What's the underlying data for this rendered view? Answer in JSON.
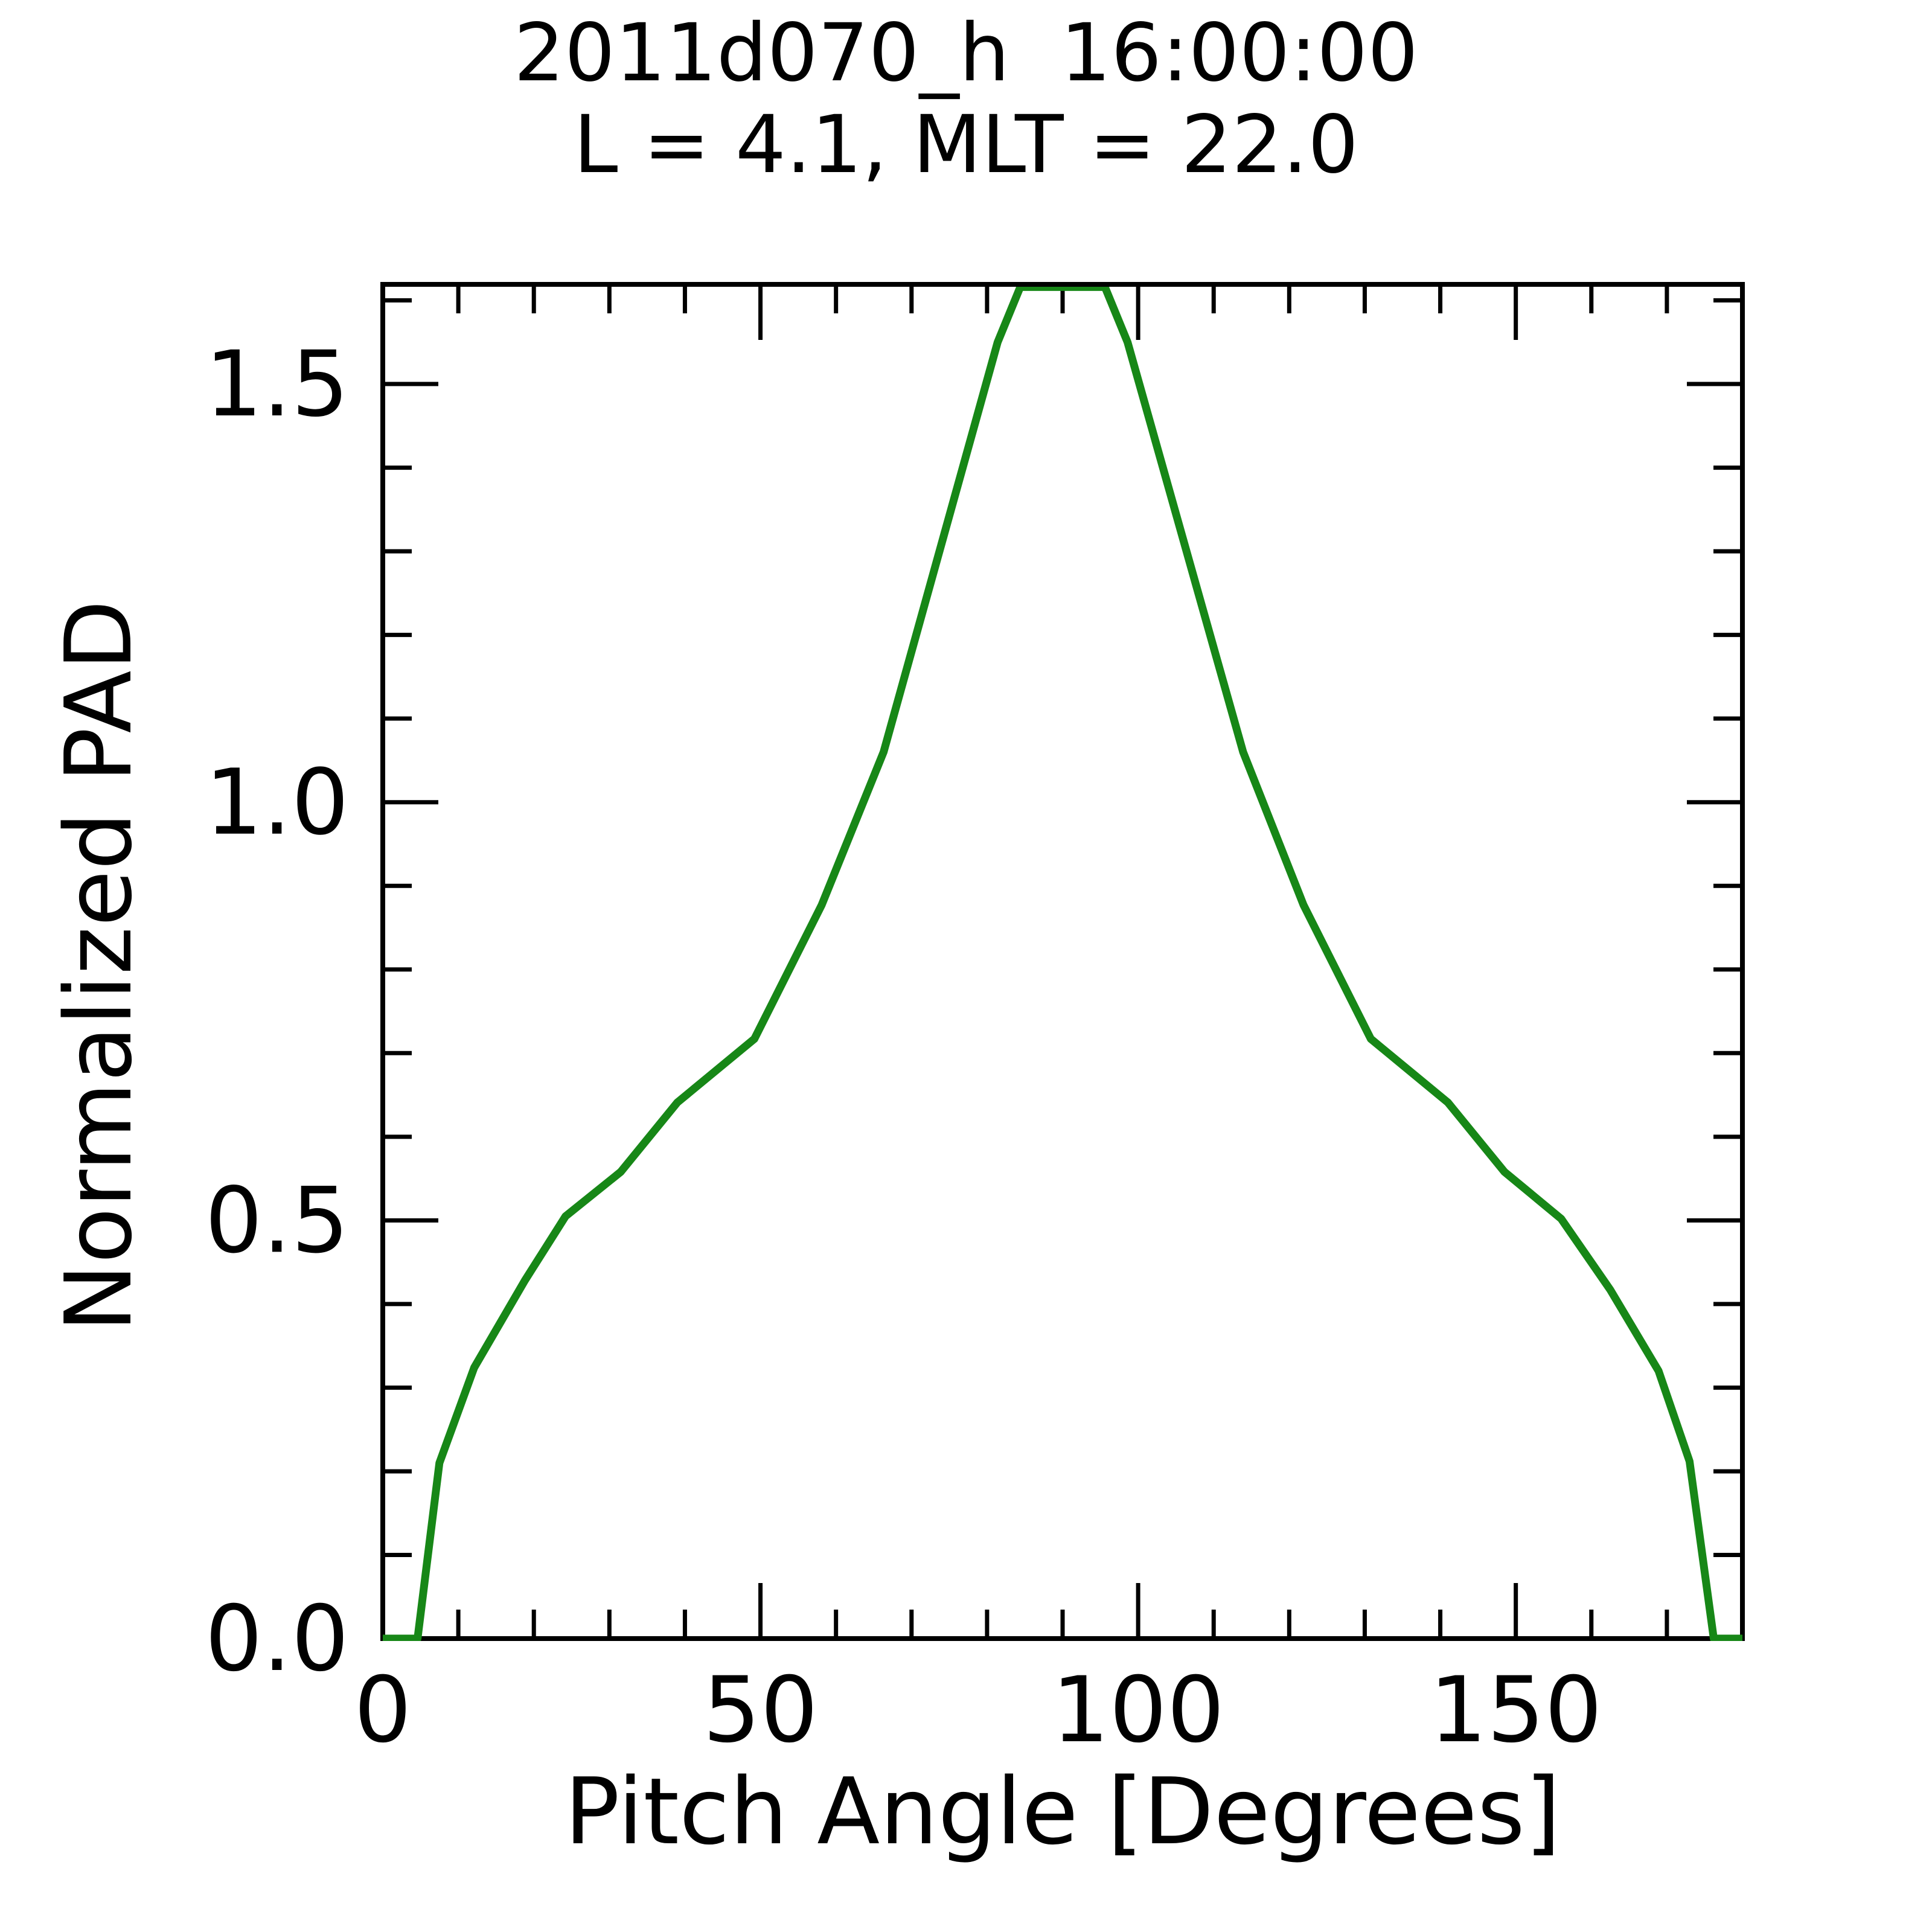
{
  "figure": {
    "title_line1": "2011d070_h  16:00:00",
    "title_line2": "L = 4.1, MLT = 22.0",
    "background_color": "#ffffff",
    "text_color": "#000000"
  },
  "chart_data": {
    "type": "line",
    "title": "2011d070_h  16:00:00",
    "subtitle": "L = 4.1, MLT = 22.0",
    "xlabel": "Pitch Angle [Degrees]",
    "ylabel": "Normalized PAD",
    "xlim": [
      0,
      180
    ],
    "ylim": [
      0,
      1.616
    ],
    "grid": false,
    "legend_position": "none",
    "x_major_ticks": [
      0,
      50,
      100,
      150
    ],
    "x_tick_labels": [
      "0",
      "50",
      "100",
      "150"
    ],
    "x_minor_tick_step": 10,
    "y_major_ticks": [
      0.0,
      0.5,
      1.0,
      1.5
    ],
    "y_tick_labels": [
      "0.0",
      "0.5",
      "1.0",
      "1.5"
    ],
    "y_minor_tick_step": 0.1,
    "line_color": "#178717",
    "axis_color": "#000000",
    "series": [
      {
        "name": "normalized-pad-curve",
        "x": [
          0,
          4.6,
          7.5,
          12.1,
          18.8,
          24.2,
          31.5,
          39.0,
          49.2,
          58.1,
          66.3,
          81.4,
          84.4,
          95.6,
          98.6,
          113.9,
          121.9,
          130.8,
          141.0,
          148.5,
          156.0,
          162.5,
          168.9,
          173.0,
          176.2,
          180
        ],
        "y": [
          0,
          0,
          0.21,
          0.324,
          0.428,
          0.505,
          0.558,
          0.641,
          0.717,
          0.877,
          1.06,
          1.55,
          1.62,
          1.62,
          1.55,
          1.06,
          0.877,
          0.717,
          0.641,
          0.558,
          0.502,
          0.417,
          0.32,
          0.212,
          0,
          0
        ],
        "note_peak_clipped_at_ylim": true
      }
    ]
  }
}
